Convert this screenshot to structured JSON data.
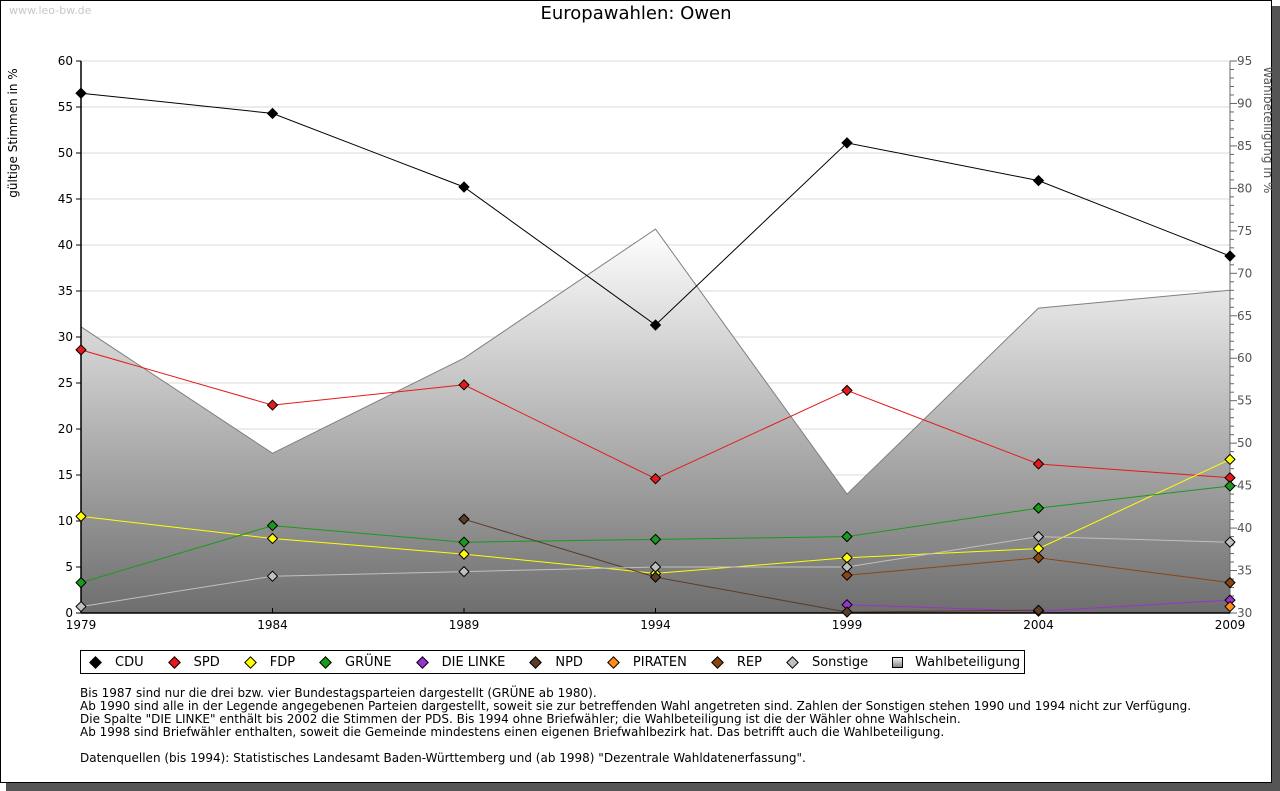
{
  "watermark": "www.leo-bw.de",
  "title": "Europawahlen: Owen",
  "chart_data": {
    "type": "line",
    "title": "Europawahlen: Owen",
    "xlabel": "",
    "ylabel": "gültige Stimmen in %",
    "ylabel_right": "Wahlbeteiligung in %",
    "x": [
      1979,
      1984,
      1989,
      1994,
      1999,
      2004,
      2009
    ],
    "ylim": [
      0,
      60
    ],
    "yticks": [
      0,
      5,
      10,
      15,
      20,
      25,
      30,
      35,
      40,
      45,
      50,
      55,
      60
    ],
    "ylim_right": [
      30,
      95
    ],
    "yticks_right": [
      30,
      35,
      40,
      45,
      50,
      55,
      60,
      65,
      70,
      75,
      80,
      85,
      90,
      95
    ],
    "grid": true,
    "legend_position": "bottom",
    "series": [
      {
        "name": "CDU",
        "color": "#000000",
        "axis": "left",
        "values": [
          56.5,
          54.3,
          46.3,
          31.3,
          51.1,
          47.0,
          38.8
        ]
      },
      {
        "name": "SPD",
        "color": "#e41a1c",
        "axis": "left",
        "values": [
          28.6,
          22.6,
          24.8,
          14.6,
          24.2,
          16.2,
          14.7
        ]
      },
      {
        "name": "FDP",
        "color": "#ffff00",
        "axis": "left",
        "values": [
          10.5,
          8.1,
          6.4,
          4.3,
          6.0,
          7.0,
          16.7
        ]
      },
      {
        "name": "GRÜNE",
        "color": "#1a9a1a",
        "axis": "left",
        "values": [
          3.3,
          9.5,
          7.7,
          8.0,
          8.3,
          11.4,
          13.8
        ]
      },
      {
        "name": "DIE LINKE",
        "color": "#9933cc",
        "axis": "left",
        "values": [
          null,
          null,
          null,
          null,
          0.9,
          0.2,
          1.4
        ]
      },
      {
        "name": "NPD",
        "color": "#5a3c28",
        "axis": "left",
        "values": [
          null,
          null,
          10.2,
          3.9,
          0.1,
          0.3,
          null
        ]
      },
      {
        "name": "PIRATEN",
        "color": "#ff8c1a",
        "axis": "left",
        "values": [
          null,
          null,
          null,
          null,
          null,
          null,
          0.7
        ]
      },
      {
        "name": "REP",
        "color": "#8b4513",
        "axis": "left",
        "values": [
          null,
          null,
          null,
          null,
          4.1,
          6.0,
          3.3
        ]
      },
      {
        "name": "Sonstige",
        "color": "#c0c0c0",
        "axis": "left",
        "values": [
          0.7,
          4.0,
          4.5,
          5.0,
          5.0,
          8.3,
          7.7
        ]
      },
      {
        "name": "Wahlbeteiligung",
        "color": "#888888",
        "axis": "right",
        "type": "area",
        "values": [
          63.7,
          48.8,
          60.0,
          75.2,
          44.0,
          65.9,
          68.0
        ]
      }
    ]
  },
  "notes": [
    "Bis 1987 sind nur die drei bzw. vier Bundestagsparteien dargestellt (GRÜNE ab 1980).",
    "Ab 1990 sind alle in der Legende angegebenen Parteien dargestellt, soweit sie zur betreffenden Wahl angetreten sind. Zahlen der Sonstigen stehen 1990 und 1994 nicht zur Verfügung.",
    "Die Spalte \"DIE LINKE\" enthält bis 2002 die Stimmen der PDS. Bis 1994 ohne Briefwähler; die Wahlbeteiligung ist die der Wähler ohne Wahlschein.",
    "Ab 1998 sind Briefwähler enthalten, soweit die Gemeinde mindestens einen eigenen Briefwahlbezirk hat. Das betrifft auch die Wahlbeteiligung."
  ],
  "source": "Datenquellen (bis 1994): Statistisches Landesamt Baden-Württemberg und (ab 1998) \"Dezentrale Wahldatenerfassung\"."
}
